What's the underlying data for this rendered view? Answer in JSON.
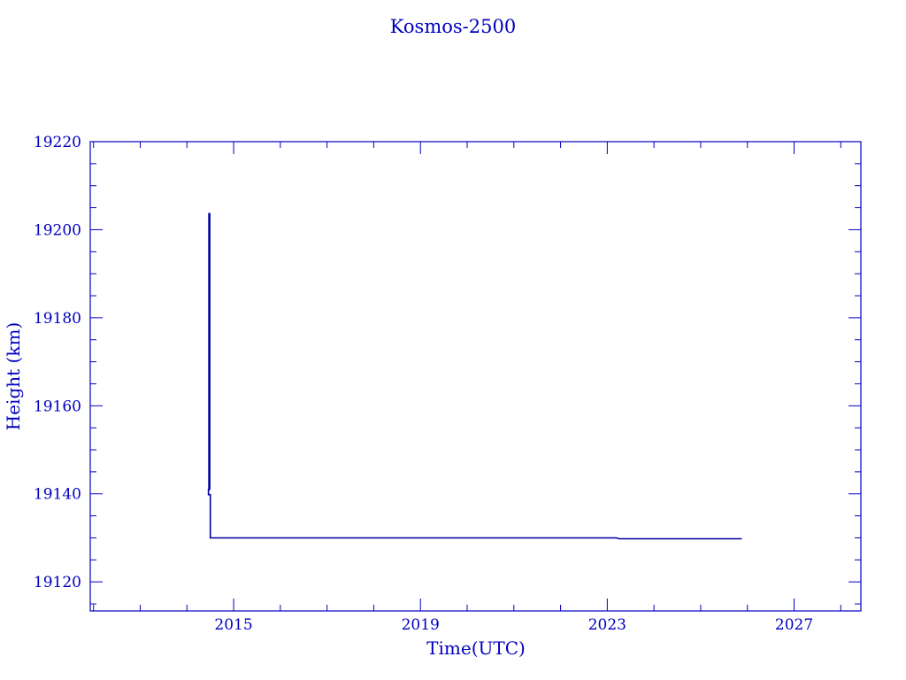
{
  "chart_data": {
    "type": "line",
    "title": "Kosmos-2500",
    "xlabel": "Time(UTC)",
    "ylabel": "Height (km)",
    "xlim": [
      2011.93,
      2028.43
    ],
    "ylim": [
      19113.4,
      19220
    ],
    "xticks": [
      2015,
      2019,
      2023,
      2027
    ],
    "yticks": [
      19120,
      19140,
      19160,
      19180,
      19200,
      19220
    ],
    "x_minor_step": 1,
    "y_minor_step": 5,
    "grid": false,
    "color": "#0000a0",
    "axis_color": "#0000c0",
    "series": [
      {
        "x": [
          2014.48,
          2014.48,
          2014.46,
          2014.46,
          2014.5,
          2014.5,
          2015.0,
          2017.0,
          2019.0,
          2021.0,
          2023.2,
          2023.25,
          2024.5,
          2025.88
        ],
        "y": [
          19203.8,
          19141,
          19141,
          19139.8,
          19139.8,
          19130.0,
          19130.0,
          19130.0,
          19130.0,
          19130.0,
          19130.0,
          19129.8,
          19129.8,
          19129.8
        ]
      }
    ]
  }
}
